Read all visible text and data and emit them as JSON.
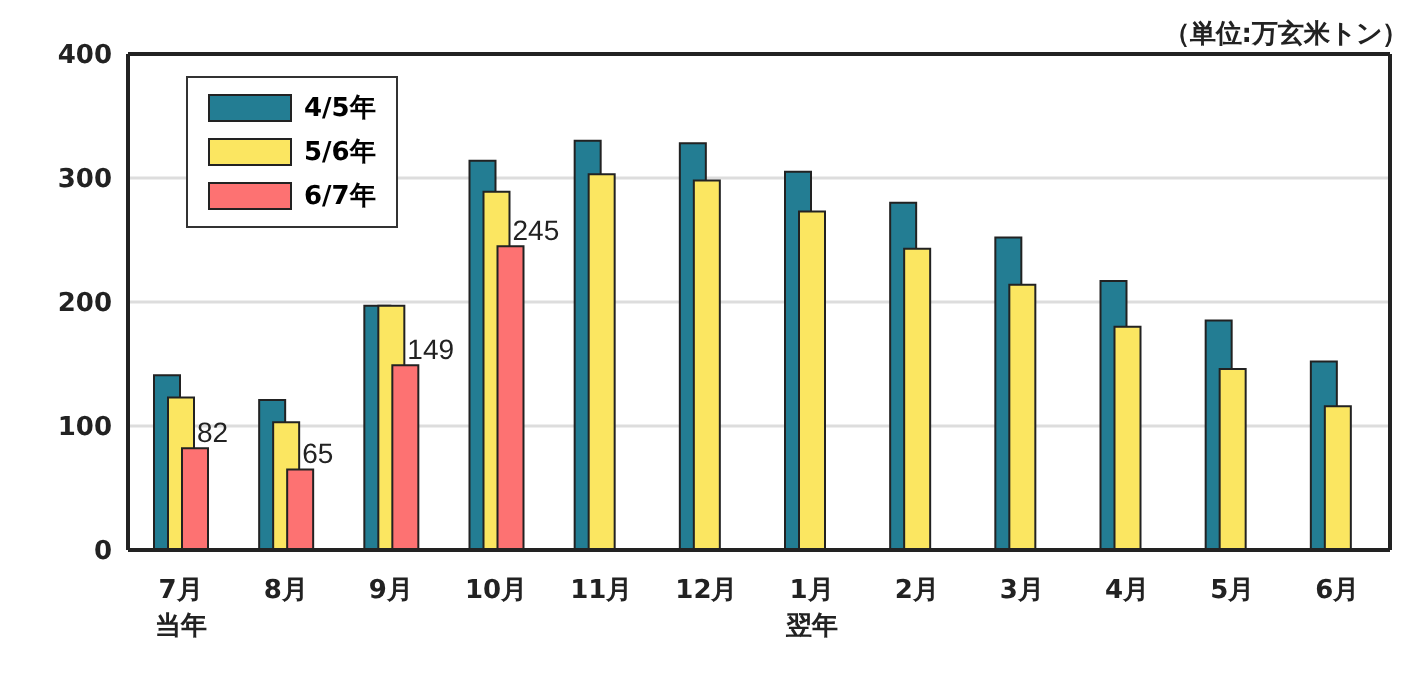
{
  "chart_data": {
    "type": "bar",
    "categories": [
      "7月当年",
      "8月",
      "9月",
      "10月",
      "11月",
      "12月",
      "1月翌年",
      "2月",
      "3月",
      "4月",
      "5月",
      "6月"
    ],
    "series": [
      {
        "name": "4/5年",
        "color": "#237d93",
        "values": [
          141,
          121,
          197,
          314,
          330,
          328,
          305,
          280,
          252,
          217,
          185,
          152
        ]
      },
      {
        "name": "5/6年",
        "color": "#fbe661",
        "values": [
          123,
          103,
          197,
          289,
          303,
          298,
          273,
          243,
          214,
          180,
          146,
          116
        ]
      },
      {
        "name": "6/7年",
        "color": "#fd7272",
        "values": [
          82,
          65,
          149,
          245,
          null,
          null,
          null,
          null,
          null,
          null,
          null,
          null
        ],
        "value_labels": [
          "82",
          "65",
          "149",
          "245",
          null,
          null,
          null,
          null,
          null,
          null,
          null,
          null
        ]
      }
    ],
    "ylim": [
      0,
      400
    ],
    "yticks": [
      0,
      100,
      200,
      300,
      400
    ],
    "grid": "y",
    "legend": "top left",
    "annotations": [
      "（単位:万玄米トン）"
    ]
  }
}
